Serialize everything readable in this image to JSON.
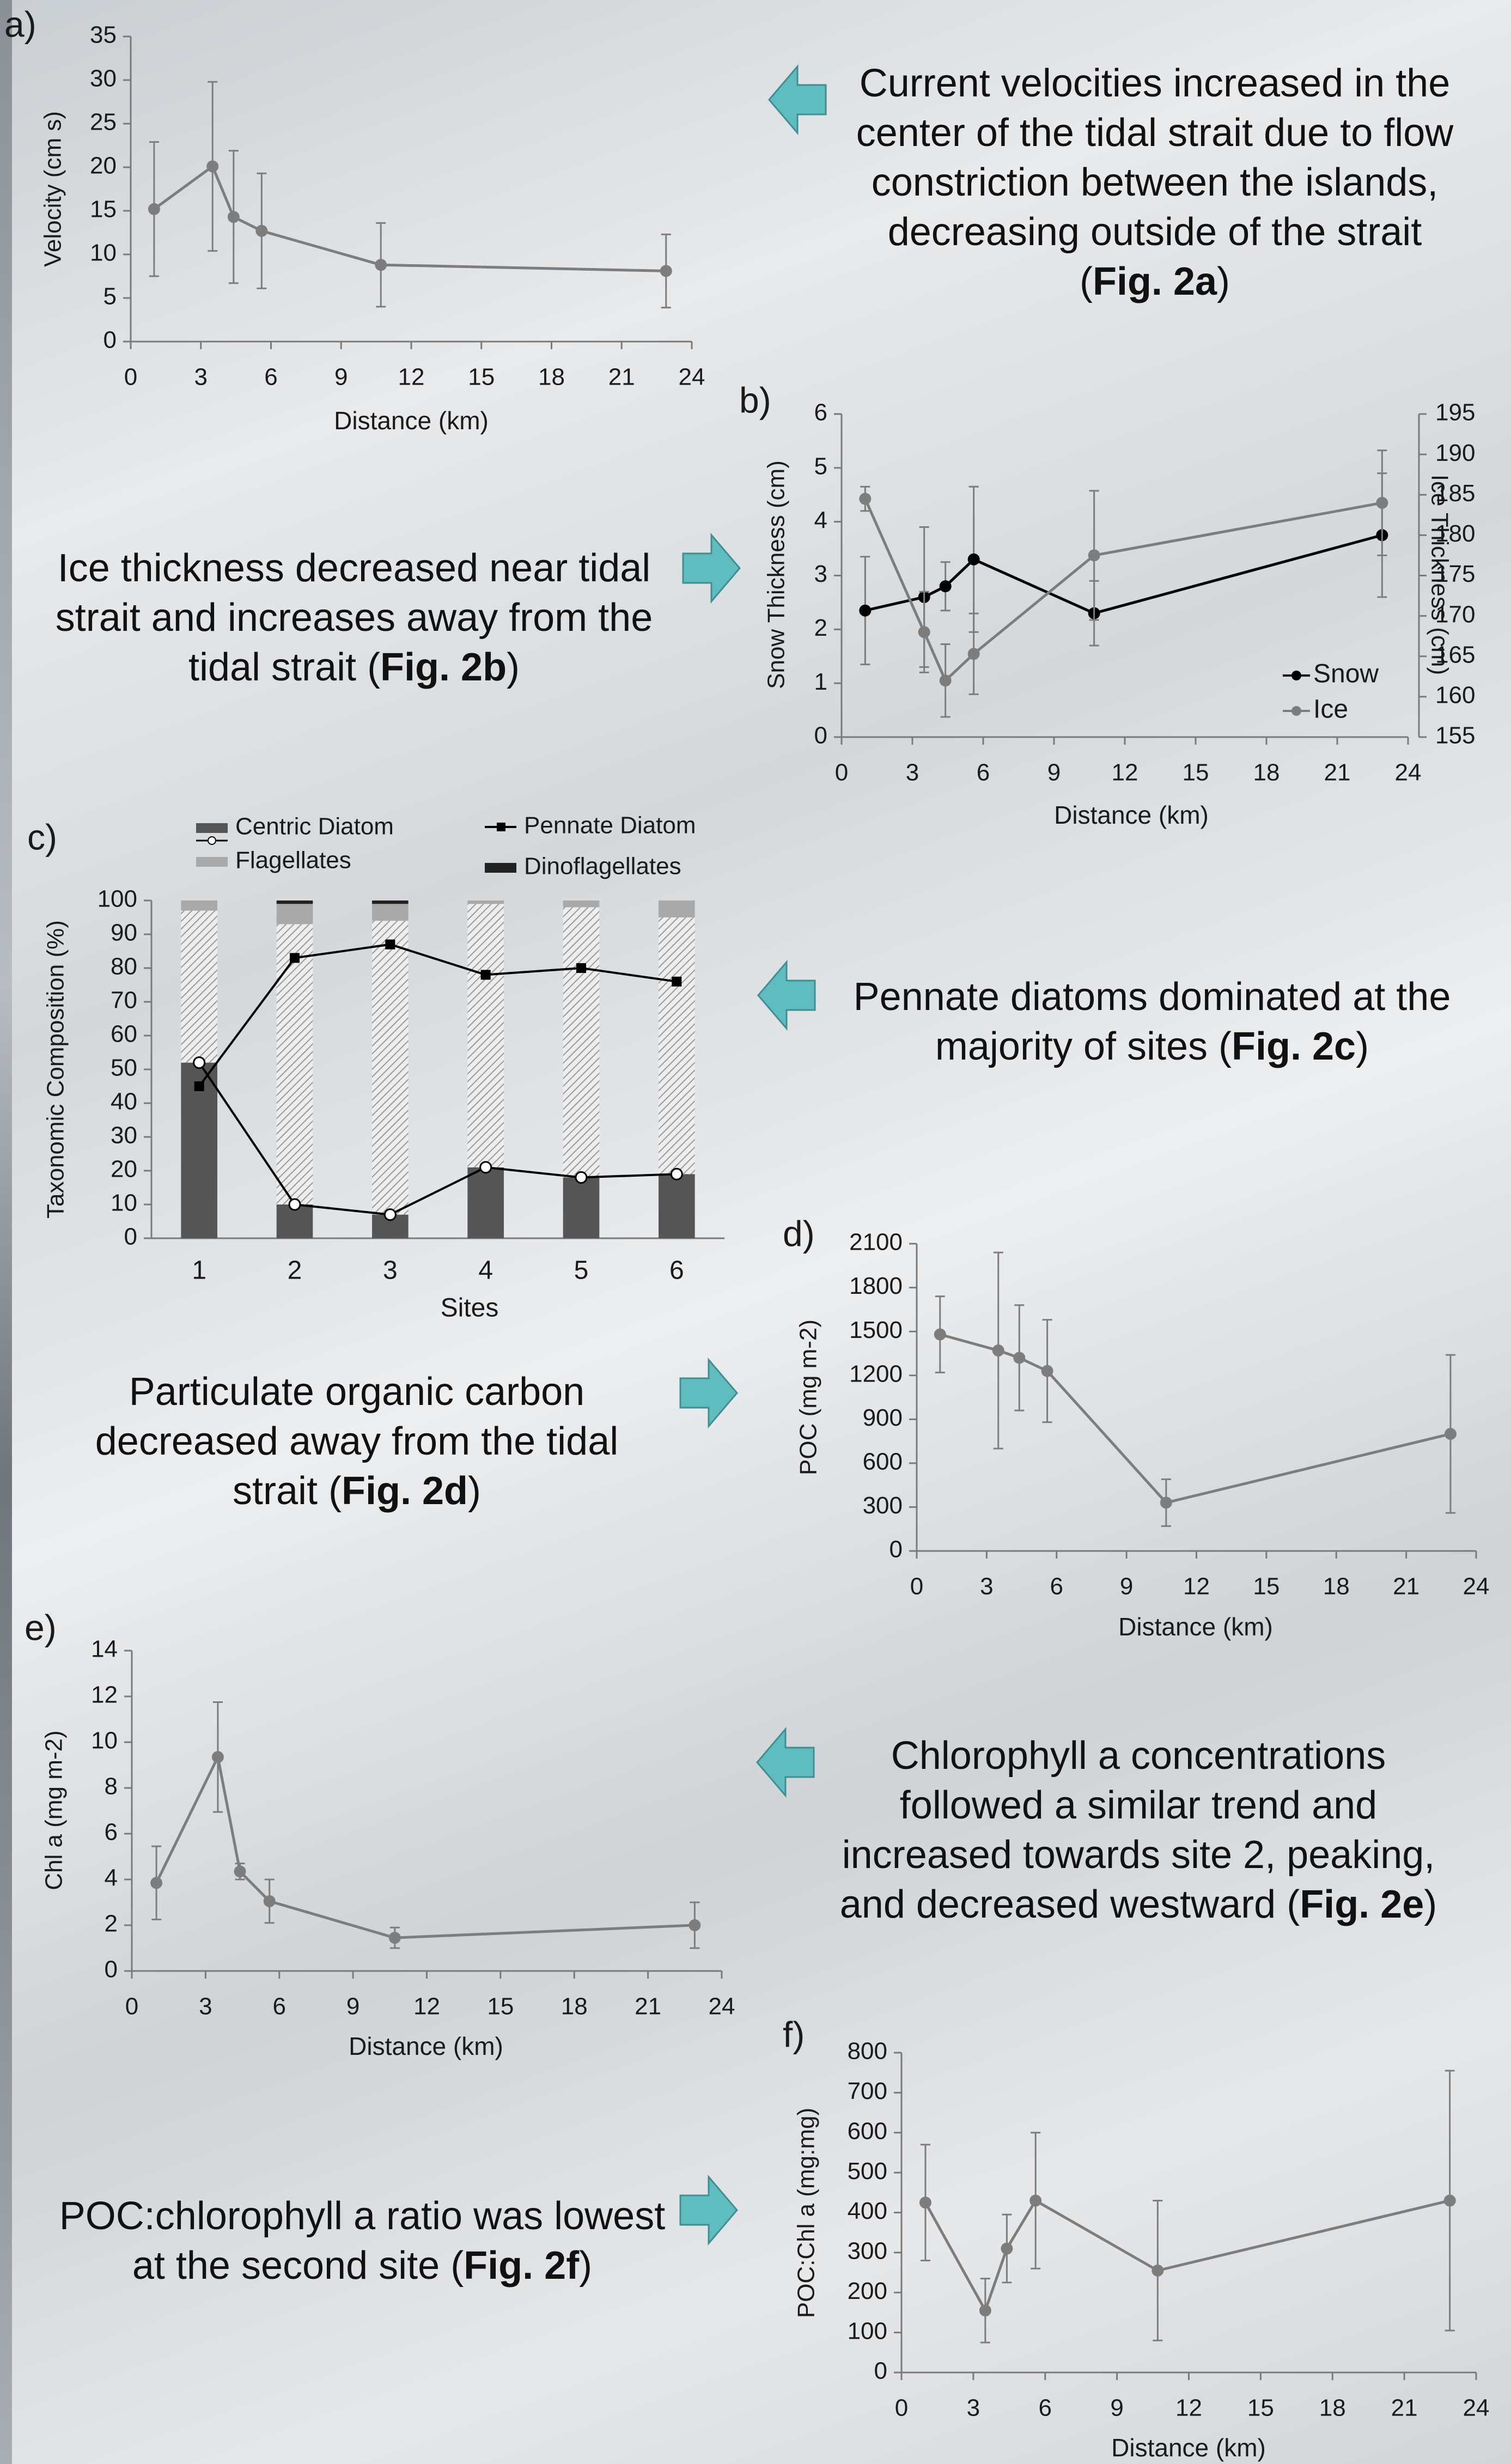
{
  "colors": {
    "series_dark": "#000000",
    "series_grey": "#7d7d7d",
    "arrow_fill": "#5fbcbf",
    "arrow_stroke": "#3f8f92",
    "bar_dark": "#555555",
    "bar_light": "#a9a9a9"
  },
  "callouts": {
    "a": {
      "text": "Current velocities increased in the center of the tidal strait due to flow constriction between the islands, decreasing outside of the strait (",
      "ref": "Fig. 2a",
      "end": ")"
    },
    "b": {
      "text": "Ice thickness decreased near tidal strait and increases away from the tidal strait (",
      "ref": "Fig. 2b",
      "end": ")"
    },
    "c": {
      "text": "Pennate diatoms dominated at the majority of sites (",
      "ref": "Fig. 2c",
      "end": ")"
    },
    "d": {
      "text": "Particulate organic carbon decreased away from the tidal strait (",
      "ref": "Fig. 2d",
      "end": ")"
    },
    "e": {
      "text": "Chlorophyll a concentrations followed a similar trend and increased towards site 2, peaking, and decreased westward (",
      "ref": "Fig. 2e",
      "end": ")"
    },
    "f": {
      "text": "POC:chlorophyll a ratio was lowest at the second site (",
      "ref": "Fig. 2f",
      "end": ")"
    }
  },
  "chart_data": [
    {
      "id": "a",
      "panel_label": "a)",
      "type": "line",
      "xlabel": "Distance (km)",
      "ylabel": "Velocity (cm s)",
      "xlim": [
        0,
        24
      ],
      "xticks": [
        0,
        3,
        6,
        9,
        12,
        15,
        18,
        21,
        24
      ],
      "ylim": [
        0,
        35
      ],
      "yticks": [
        0,
        5,
        10,
        15,
        20,
        25,
        30,
        35
      ],
      "series": [
        {
          "name": "",
          "color": "#7d7d7d",
          "marker": "circle",
          "x": [
            1.0,
            3.5,
            4.4,
            5.6,
            10.7,
            22.9
          ],
          "y": [
            15.2,
            20.1,
            14.3,
            12.7,
            8.8,
            8.1
          ],
          "err": [
            7.7,
            9.7,
            7.6,
            6.6,
            4.8,
            4.2
          ]
        }
      ]
    },
    {
      "id": "b",
      "panel_label": "b)",
      "type": "line",
      "xlabel": "Distance (km)",
      "ylabel": "Snow Thickness (cm)",
      "y2label": "Ice Thickness (cm)",
      "xlim": [
        0,
        24
      ],
      "xticks": [
        0,
        3,
        6,
        9,
        12,
        15,
        18,
        21,
        24
      ],
      "ylim": [
        0,
        6
      ],
      "yticks": [
        0,
        1,
        2,
        3,
        4,
        5,
        6
      ],
      "y2lim": [
        155,
        195
      ],
      "y2ticks": [
        155,
        160,
        165,
        170,
        175,
        180,
        185,
        190,
        195
      ],
      "legend_position": "bottom-right",
      "series": [
        {
          "name": "Snow",
          "color": "#000000",
          "axis": "left",
          "x": [
            1.0,
            3.5,
            4.4,
            5.6,
            10.7,
            22.9
          ],
          "y": [
            2.35,
            2.6,
            2.8,
            3.3,
            2.3,
            3.75
          ],
          "err": [
            1.0,
            1.3,
            0.45,
            1.35,
            0.6,
            1.15
          ]
        },
        {
          "name": "Ice",
          "color": "#7d7d7d",
          "axis": "right",
          "x": [
            1.0,
            3.5,
            4.4,
            5.6,
            10.7,
            22.9
          ],
          "y": [
            184.5,
            168.0,
            162.0,
            165.3,
            177.5,
            184.0
          ],
          "err": [
            1.5,
            5.0,
            4.5,
            5.0,
            8.0,
            6.5
          ]
        }
      ]
    },
    {
      "id": "c",
      "panel_label": "c)",
      "type": "bar",
      "xlabel": "Sites",
      "ylabel": "Taxonomic Composition (%)",
      "categories": [
        "1",
        "2",
        "3",
        "4",
        "5",
        "6"
      ],
      "ylim": [
        0,
        100
      ],
      "yticks": [
        0,
        10,
        20,
        30,
        40,
        50,
        60,
        70,
        80,
        90,
        100
      ],
      "legend": [
        "Centric Diatom",
        "Pennate Diatom",
        "Flagellates",
        "Dinoflagellates"
      ],
      "stacks": {
        "Centric Diatom": [
          52,
          10,
          7,
          21,
          18,
          19
        ],
        "Pennate Diatom": [
          45,
          83,
          87,
          78,
          80,
          76
        ],
        "Flagellates": [
          3,
          6,
          5,
          1,
          2,
          5
        ],
        "Dinoflagellates": [
          0,
          1,
          1,
          0,
          0,
          0
        ]
      }
    },
    {
      "id": "d",
      "panel_label": "d)",
      "type": "line",
      "xlabel": "Distance (km)",
      "ylabel": "POC (mg m-2)",
      "xlim": [
        0,
        24
      ],
      "xticks": [
        0,
        3,
        6,
        9,
        12,
        15,
        18,
        21,
        24
      ],
      "ylim": [
        0,
        2100
      ],
      "yticks": [
        0,
        300,
        600,
        900,
        1200,
        1500,
        1800,
        2100
      ],
      "series": [
        {
          "name": "",
          "color": "#7d7d7d",
          "x": [
            1.0,
            3.5,
            4.4,
            5.6,
            10.7,
            22.9
          ],
          "y": [
            1480,
            1370,
            1320,
            1230,
            330,
            800
          ],
          "err": [
            260,
            670,
            360,
            350,
            160,
            540
          ]
        }
      ]
    },
    {
      "id": "e",
      "panel_label": "e)",
      "type": "line",
      "xlabel": "Distance (km)",
      "ylabel": "Chl a (mg m-2)",
      "xlim": [
        0,
        24
      ],
      "xticks": [
        0,
        3,
        6,
        9,
        12,
        15,
        18,
        21,
        24
      ],
      "ylim": [
        0,
        14
      ],
      "yticks": [
        0,
        2,
        4,
        6,
        8,
        10,
        12,
        14
      ],
      "series": [
        {
          "name": "",
          "color": "#7d7d7d",
          "x": [
            1.0,
            3.5,
            4.4,
            5.6,
            10.7,
            22.9
          ],
          "y": [
            3.85,
            9.35,
            4.35,
            3.05,
            1.45,
            2.0
          ],
          "err": [
            1.6,
            2.4,
            0.35,
            0.95,
            0.45,
            1.0
          ]
        }
      ]
    },
    {
      "id": "f",
      "panel_label": "f)",
      "type": "line",
      "xlabel": "Distance (km)",
      "ylabel": "POC:Chl a (mg:mg)",
      "xlim": [
        0,
        24
      ],
      "xticks": [
        0,
        3,
        6,
        9,
        12,
        15,
        18,
        21,
        24
      ],
      "ylim": [
        0,
        800
      ],
      "yticks": [
        0,
        100,
        200,
        300,
        400,
        500,
        600,
        700,
        800
      ],
      "series": [
        {
          "name": "",
          "color": "#7d7d7d",
          "x": [
            1.0,
            3.5,
            4.4,
            5.6,
            10.7,
            22.9
          ],
          "y": [
            425,
            155,
            310,
            430,
            255,
            430
          ],
          "err": [
            145,
            80,
            85,
            170,
            175,
            325
          ]
        }
      ]
    }
  ]
}
